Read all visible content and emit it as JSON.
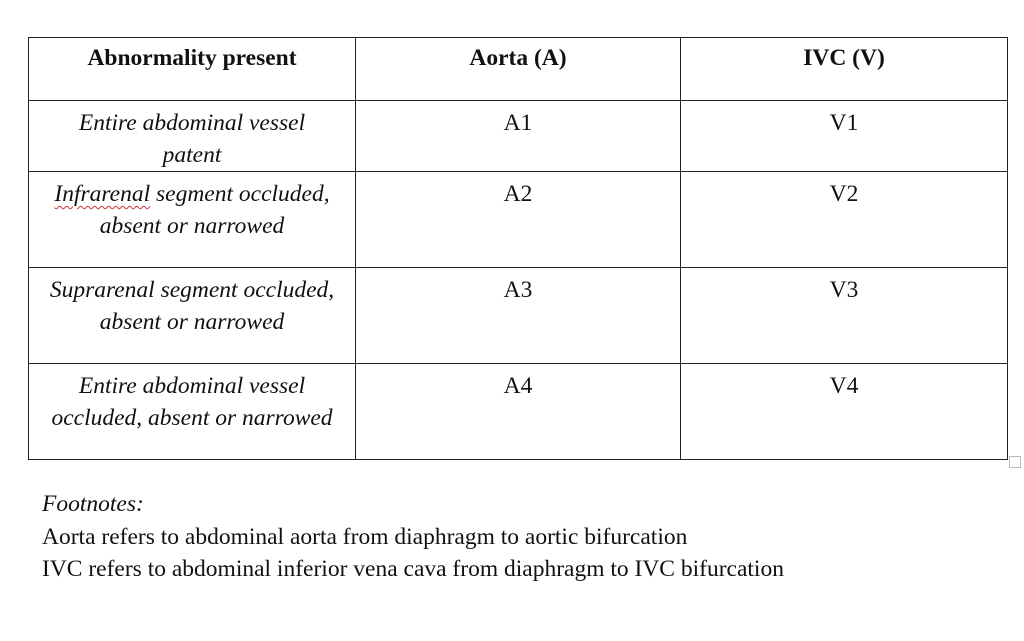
{
  "table": {
    "headers": [
      "Abnormality present",
      "Aorta (A)",
      "IVC (V)"
    ],
    "rows": [
      {
        "label": "Entire abdominal vessel patent",
        "aorta": "A1",
        "ivc": "V1"
      },
      {
        "label_spell": "Infrarenal",
        "label_rest": " segment occluded, absent or narrowed",
        "aorta": "A2",
        "ivc": "V2"
      },
      {
        "label": "Suprarenal segment occluded, absent or narrowed",
        "aorta": "A3",
        "ivc": "V3"
      },
      {
        "label": "Entire abdominal vessel occluded, absent or narrowed",
        "aorta": "A4",
        "ivc": "V4"
      }
    ]
  },
  "footnotes": {
    "title": "Footnotes:",
    "lines": [
      "Aorta refers to abdominal aorta from diaphragm to aortic bifurcation",
      "IVC refers to abdominal inferior vena cava from diaphragm to IVC bifurcation"
    ]
  }
}
